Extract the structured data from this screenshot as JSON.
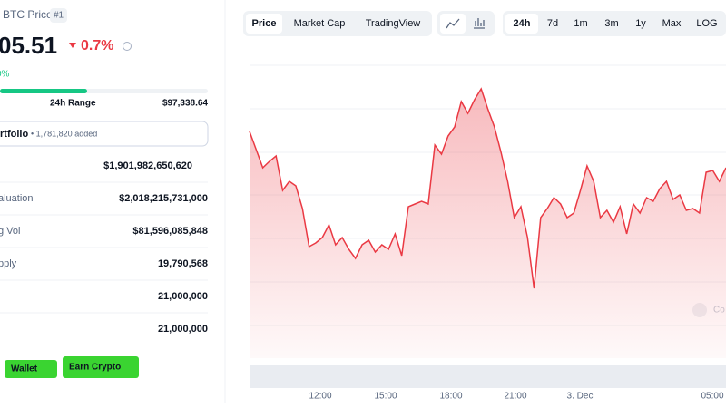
{
  "header": {
    "name": "BTC Price",
    "rank": "#1",
    "price": "05.51",
    "change": "0.7%",
    "sub_change": "0%"
  },
  "range": {
    "label": "24h Range",
    "high": "$97,338.64"
  },
  "portfolio": {
    "label": "rtfolio",
    "added": "• 1,781,820 added"
  },
  "stats": [
    {
      "label": "",
      "value": "$1,901,982,650,620"
    },
    {
      "label": "aluation",
      "value": "$2,018,215,731,000"
    },
    {
      "label": "g Vol",
      "value": "$81,596,085,848"
    },
    {
      "label": "pply",
      "value": "19,790,568"
    },
    {
      "label": "",
      "value": "21,000,000"
    },
    {
      "label": "",
      "value": "21,000,000"
    }
  ],
  "buttons": [
    "Wallet",
    "Earn Crypto"
  ],
  "tabs": [
    "Price",
    "Market Cap",
    "TradingView"
  ],
  "ranges": [
    "24h",
    "7d",
    "1m",
    "3m",
    "1y",
    "Max",
    "LOG"
  ],
  "watermark": "Co",
  "chart_data": {
    "type": "line",
    "color": "#ea3943",
    "ylim": [
      94400,
      97900
    ],
    "x_labels": [
      "12:00",
      "15:00",
      "18:00",
      "21:00",
      "3. Dec",
      "05:00"
    ],
    "values": [
      96900,
      96700,
      96500,
      96570,
      96630,
      96250,
      96350,
      96300,
      96050,
      95630,
      95670,
      95730,
      95870,
      95650,
      95730,
      95600,
      95500,
      95650,
      95700,
      95570,
      95650,
      95600,
      95770,
      95530,
      96070,
      96100,
      96130,
      96100,
      96750,
      96650,
      96850,
      96950,
      97230,
      97100,
      97250,
      97370,
      97150,
      96950,
      96670,
      96350,
      95950,
      96070,
      95730,
      95170,
      95950,
      96050,
      96170,
      96100,
      95950,
      96000,
      96250,
      96520,
      96350,
      95950,
      96030,
      95900,
      96070,
      95770,
      96100,
      96000,
      96170,
      96130,
      96270,
      96350,
      96150,
      96200,
      96030,
      96050,
      96000,
      96450,
      96470,
      96350,
      96500
    ]
  }
}
